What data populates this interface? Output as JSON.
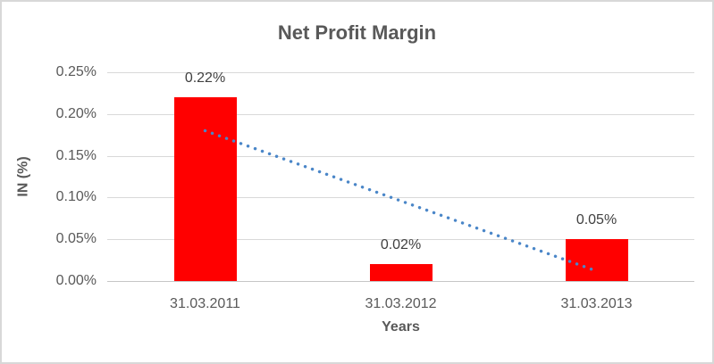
{
  "chart_data": {
    "type": "bar",
    "title": "Net Profit Margin",
    "xlabel": "Years",
    "ylabel": "IN (%)",
    "categories": [
      "31.03.2011",
      "31.03.2012",
      "31.03.2013"
    ],
    "values": [
      0.22,
      0.02,
      0.05
    ],
    "data_labels": [
      "0.22%",
      "0.02%",
      "0.05%"
    ],
    "yticks": [
      "0.00%",
      "0.05%",
      "0.10%",
      "0.15%",
      "0.20%",
      "0.25%"
    ],
    "ylim": [
      0,
      0.25
    ],
    "grid": "horizontal-on",
    "legend": "none",
    "bar_color": "#FF0000",
    "trendline": {
      "style": "dotted",
      "color": "#4A86C8",
      "start_value": 0.18,
      "end_value": 0.012
    },
    "colors": {
      "title_text": "#595959",
      "axis_text": "#595959",
      "data_label_text": "#404040",
      "gridline": "#D9D9D9",
      "axis_line": "#C6C6C6",
      "frame_border": "#D8D8D8",
      "background": "#FFFFFF"
    }
  }
}
